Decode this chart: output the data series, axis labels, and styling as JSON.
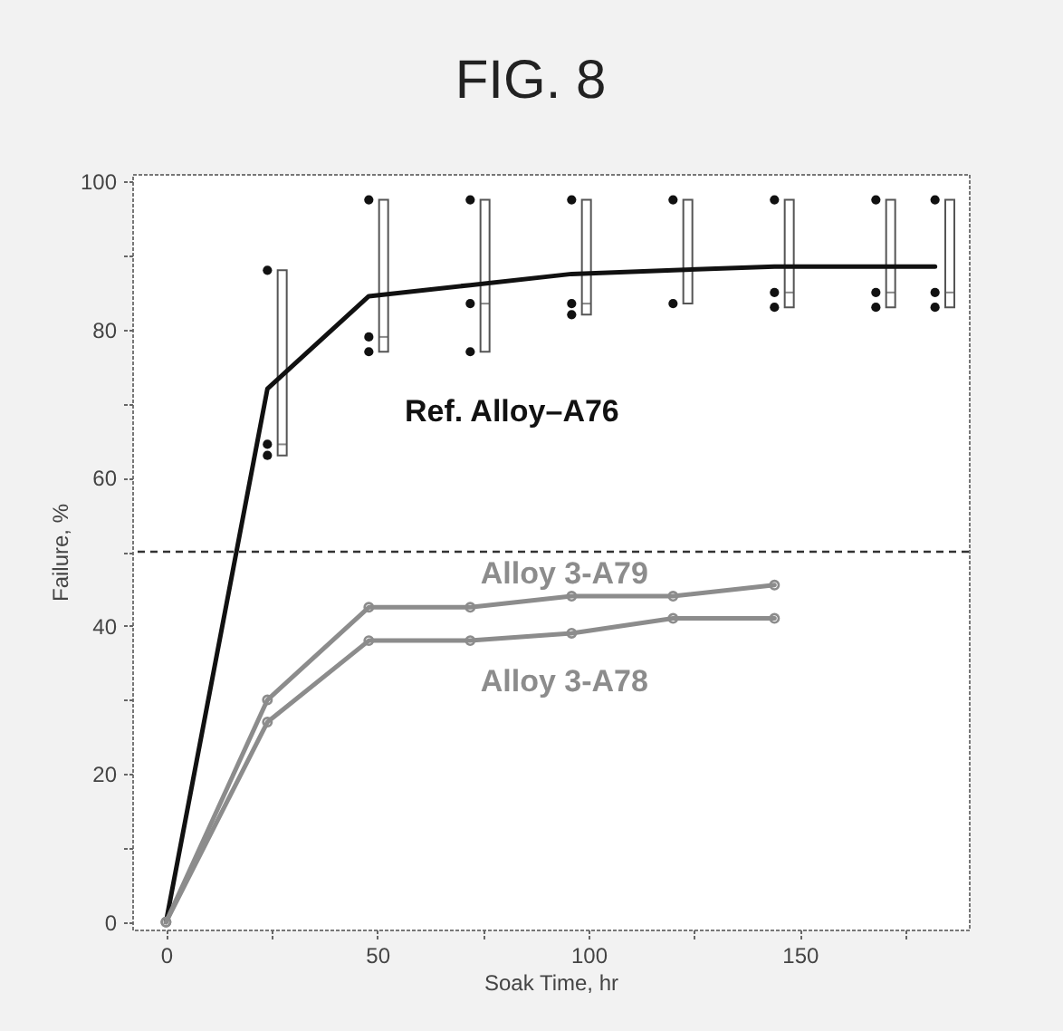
{
  "chart_data": {
    "type": "line",
    "title": "FIG. 8",
    "xlabel": "Soak Time, hr",
    "ylabel": "Failure, %",
    "xlim": [
      -8,
      190
    ],
    "ylim": [
      -1,
      101
    ],
    "xticks": [
      0,
      {
        "value": 25,
        "label": null
      },
      50,
      {
        "value": 75,
        "label": null
      },
      100,
      {
        "value": 125,
        "label": null
      },
      150,
      {
        "value": 175,
        "label": null
      }
    ],
    "yticks": [
      0,
      {
        "value": 10,
        "label": null
      },
      20,
      {
        "value": 30,
        "label": null
      },
      40,
      {
        "value": 50,
        "label": null
      },
      60,
      {
        "value": 70,
        "label": null
      },
      80,
      {
        "value": 90,
        "label": null
      },
      100
    ],
    "ref_lines": [
      {
        "axis": "y",
        "value": 50,
        "color": "#333333",
        "line_style": "dashed"
      }
    ],
    "series": [
      {
        "type": "box",
        "color": "#555555",
        "x": [
          27.5,
          51.5,
          75.5,
          99.5,
          147.5,
          171.5,
          185.5
        ],
        "boxes": [
          {
            "low": 63,
            "q1": 63,
            "median": 64.5,
            "q3": 88,
            "high": 88
          },
          {
            "low": 77,
            "q1": 77,
            "median": 79,
            "q3": 97.5,
            "high": 97.5
          },
          {
            "low": 77,
            "q1": 77,
            "median": 83.5,
            "q3": 97.5,
            "high": 97.5
          },
          {
            "low": 82,
            "q1": 82,
            "median": 83.5,
            "q3": 97.5,
            "high": 97.5
          },
          {
            "low": 83,
            "q1": 83,
            "median": 85,
            "q3": 97.5,
            "high": 97.5
          },
          {
            "low": 83,
            "q1": 83,
            "median": 85,
            "q3": 97.5,
            "high": 97.5
          },
          {
            "low": 83,
            "q1": 83,
            "median": 85,
            "q3": 97.5,
            "high": 97.5
          }
        ]
      },
      {
        "type": "bar",
        "color": "#ffffff",
        "x": [
          123.5
        ],
        "base": [
          83.5
        ],
        "values": [
          14
        ]
      },
      {
        "type": "scatter",
        "color": "#111111",
        "marker": "circle",
        "x": [
          24,
          24,
          24,
          48,
          48,
          48,
          72,
          72,
          72,
          96,
          96,
          96,
          120,
          120,
          144,
          144,
          144,
          168,
          168,
          168,
          182,
          182,
          182
        ],
        "values": [
          88,
          64.5,
          63,
          97.5,
          79,
          77,
          97.5,
          83.5,
          77,
          97.5,
          83.5,
          82,
          97.5,
          83.5,
          97.5,
          85,
          83,
          97.5,
          85,
          83,
          97.5,
          85,
          83
        ]
      },
      {
        "name": "Ref. Alloy–A76",
        "color": "#111111",
        "marker": "none",
        "x": [
          0,
          24,
          48,
          72,
          96,
          120,
          144,
          168,
          182
        ],
        "values": [
          0,
          72,
          84.5,
          86,
          87.5,
          88,
          88.5,
          88.5,
          88.5
        ]
      },
      {
        "name": "Alloy 3-A79",
        "color": "#8c8c8c",
        "marker": "circle",
        "x": [
          0,
          24,
          48,
          72,
          96,
          120,
          144
        ],
        "values": [
          0,
          30,
          42.5,
          42.5,
          44,
          44,
          45.5
        ]
      },
      {
        "name": "Alloy 3-A78",
        "color": "#8c8c8c",
        "marker": "circle",
        "x": [
          0,
          24,
          48,
          72,
          96,
          120,
          144
        ],
        "values": [
          0,
          27,
          38,
          38,
          39,
          41,
          41
        ]
      }
    ]
  }
}
